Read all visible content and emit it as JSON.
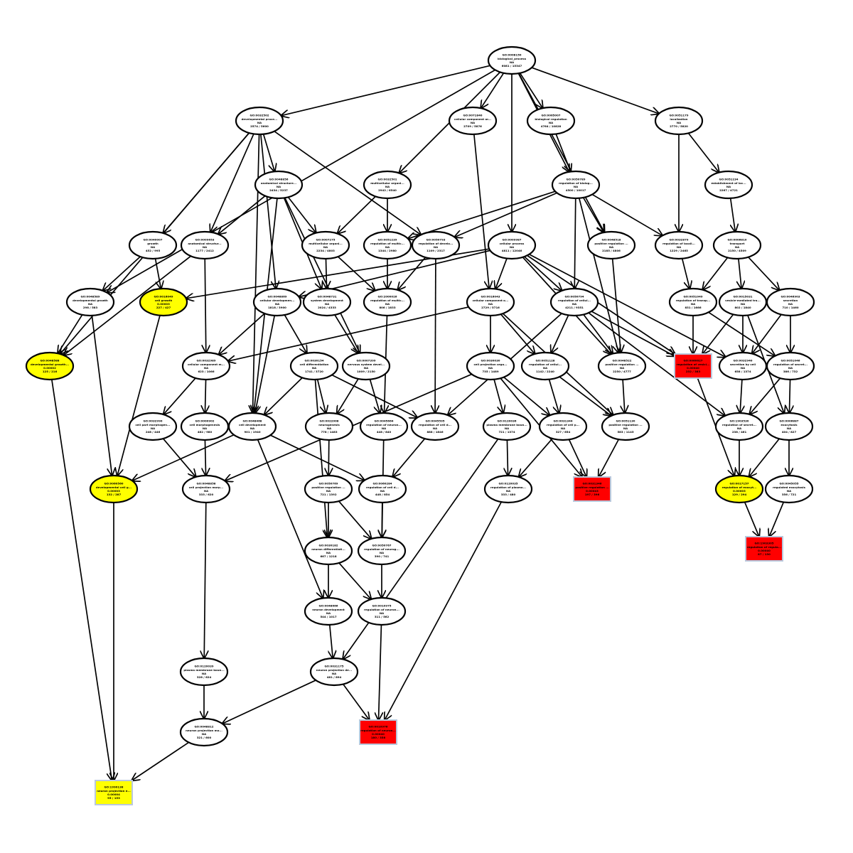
{
  "colors": {
    "significant": "#ff0000",
    "near_significant": "#ffff00",
    "default": "#ffffff",
    "rect_border": "#b9c8dc"
  },
  "nodes": [
    {
      "id": "n0",
      "lines": [
        "GO:0008150",
        "biological_process",
        "NA",
        "6081 / 15347"
      ],
      "fill": "white",
      "shape": "ellipse"
    },
    {
      "id": "n1",
      "lines": [
        "GO:0032502",
        "developmental proce...",
        "NA",
        "2574 / 5600"
      ],
      "fill": "white",
      "shape": "ellipse"
    },
    {
      "id": "n2",
      "lines": [
        "GO:0071840",
        "cellular component or...",
        "NA",
        "2709 / 5876"
      ],
      "fill": "white",
      "shape": "ellipse"
    },
    {
      "id": "n3",
      "lines": [
        "GO:0065007",
        "biological regulation",
        "NA",
        "4764 / 10828"
      ],
      "fill": "white",
      "shape": "ellipse"
    },
    {
      "id": "n4",
      "lines": [
        "GO:0051179",
        "localization",
        "NA",
        "2770 / 5820"
      ],
      "fill": "white",
      "shape": "ellipse"
    },
    {
      "id": "n5",
      "lines": [
        "GO:0048856",
        "anatomical structure...",
        "NA",
        "2434 / 5237"
      ],
      "fill": "white",
      "shape": "ellipse"
    },
    {
      "id": "n6",
      "lines": [
        "GO:0032501",
        "multicellular organi...",
        "NA",
        "2942 / 6540"
      ],
      "fill": "white",
      "shape": "ellipse"
    },
    {
      "id": "n7",
      "lines": [
        "GO:0050789",
        "regulation of biolog...",
        "NA",
        "4500 / 10017"
      ],
      "fill": "white",
      "shape": "ellipse"
    },
    {
      "id": "n8",
      "lines": [
        "GO:0051234",
        "establishment of loc...",
        "NA",
        "2267 / 4721"
      ],
      "fill": "white",
      "shape": "ellipse"
    },
    {
      "id": "n9",
      "lines": [
        "GO:0040007",
        "growth",
        "NA",
        "452 / 995"
      ],
      "fill": "white",
      "shape": "ellipse"
    },
    {
      "id": "n10",
      "lines": [
        "GO:0009653",
        "anatomical structur...",
        "NA",
        "1177 / 2412"
      ],
      "fill": "white",
      "shape": "ellipse"
    },
    {
      "id": "n11",
      "lines": [
        "GO:0007275",
        "multicellular organi...",
        "NA",
        "2234 / 4803"
      ],
      "fill": "white",
      "shape": "ellipse"
    },
    {
      "id": "n12",
      "lines": [
        "GO:0051239",
        "regulation of multic...",
        "NA",
        "1344 / 2980"
      ],
      "fill": "white",
      "shape": "ellipse"
    },
    {
      "id": "n13",
      "lines": [
        "GO:0050793",
        "regulation of develo...",
        "NA",
        "1109 / 2317"
      ],
      "fill": "white",
      "shape": "ellipse"
    },
    {
      "id": "n14",
      "lines": [
        "GO:0009987",
        "cellular process",
        "NA",
        "4811 / 12046"
      ],
      "fill": "white",
      "shape": "ellipse"
    },
    {
      "id": "n15",
      "lines": [
        "GO:0048518",
        "positive regulation ...",
        "NA",
        "2185 / 4806"
      ],
      "fill": "white",
      "shape": "ellipse"
    },
    {
      "id": "n16",
      "lines": [
        "GO:0032879",
        "regulation of locali...",
        "NA",
        "1229 / 2465"
      ],
      "fill": "white",
      "shape": "ellipse"
    },
    {
      "id": "n17",
      "lines": [
        "GO:0006810",
        "transport",
        "NA",
        "2150 / 4509"
      ],
      "fill": "white",
      "shape": "ellipse"
    },
    {
      "id": "n18",
      "lines": [
        "GO:0048589",
        "developmental growth",
        "NA",
        "298 / 583"
      ],
      "fill": "white",
      "shape": "ellipse"
    },
    {
      "id": "n19",
      "lines": [
        "GO:0016049",
        "cell growth",
        "0.00003",
        "227 / 427"
      ],
      "fill": "yellow",
      "shape": "ellipse"
    },
    {
      "id": "n20",
      "lines": [
        "GO:0048869",
        "cellular developmen...",
        "NA",
        "1818 / 3900"
      ],
      "fill": "white",
      "shape": "ellipse"
    },
    {
      "id": "n21",
      "lines": [
        "GO:0048731",
        "system development",
        "NA",
        "2024 / 4333"
      ],
      "fill": "white",
      "shape": "ellipse"
    },
    {
      "id": "n22",
      "lines": [
        "GO:2000026",
        "regulation of multic...",
        "NA",
        "806 / 1833"
      ],
      "fill": "white",
      "shape": "ellipse"
    },
    {
      "id": "n23",
      "lines": [
        "GO:0016043",
        "cellular component o...",
        "NA",
        "2729 / 5716"
      ],
      "fill": "white",
      "shape": "ellipse"
    },
    {
      "id": "n24",
      "lines": [
        "GO:0050794",
        "regulation of cellul...",
        "NA",
        "4211 / 9351"
      ],
      "fill": "white",
      "shape": "ellipse"
    },
    {
      "id": "n25",
      "lines": [
        "GO:0051049",
        "regulation of transp...",
        "NA",
        "831 / 1666"
      ],
      "fill": "white",
      "shape": "ellipse"
    },
    {
      "id": "n26",
      "lines": [
        "GO:0015031",
        "vesicle-mediated tra...",
        "NA",
        "802 / 1840"
      ],
      "fill": "white",
      "shape": "ellipse"
    },
    {
      "id": "n27",
      "lines": [
        "GO:0046903",
        "secretion",
        "NA",
        "710 / 1460"
      ],
      "fill": "white",
      "shape": "ellipse"
    },
    {
      "id": "n28",
      "lines": [
        "GO:0048588",
        "developmental growth...",
        "0.00002",
        "125 / 216"
      ],
      "fill": "yellow",
      "shape": "ellipse"
    },
    {
      "id": "n29",
      "lines": [
        "GO:0032989",
        "cellular component m...",
        "NA",
        "623 / 1066"
      ],
      "fill": "white",
      "shape": "ellipse"
    },
    {
      "id": "n30",
      "lines": [
        "GO:0030154",
        "cell differentiation",
        "NA",
        "1741 / 3720"
      ],
      "fill": "white",
      "shape": "ellipse"
    },
    {
      "id": "n31",
      "lines": [
        "GO:0007399",
        "nervous system devel...",
        "NA",
        "1009 / 2150"
      ],
      "fill": "white",
      "shape": "ellipse"
    },
    {
      "id": "n32",
      "lines": [
        "GO:0030030",
        "cell projection orga...",
        "NA",
        "735 / 1489"
      ],
      "fill": "white",
      "shape": "ellipse"
    },
    {
      "id": "n33",
      "lines": [
        "GO:0051128",
        "regulation of cellul...",
        "NA",
        "1142 / 2240"
      ],
      "fill": "white",
      "shape": "ellipse"
    },
    {
      "id": "n34",
      "lines": [
        "GO:0048522",
        "positive regulation ...",
        "NA",
        "2250 / 4777"
      ],
      "fill": "white",
      "shape": "ellipse"
    },
    {
      "id": "n35",
      "lines": [
        "GO:0060627",
        "regulation of vesicl...",
        "0.00040",
        "232 / 383"
      ],
      "fill": "red",
      "shape": "rect"
    },
    {
      "id": "n36",
      "lines": [
        "GO:0032940",
        "secretion by cell",
        "NA",
        "658 / 1374"
      ],
      "fill": "white",
      "shape": "ellipse"
    },
    {
      "id": "n37",
      "lines": [
        "GO:0051046",
        "regulation of secret...",
        "NA",
        "386 / 732"
      ],
      "fill": "white",
      "shape": "ellipse"
    },
    {
      "id": "n38",
      "lines": [
        "GO:0032990",
        "cell part morphogen...",
        "NA",
        "248 / 446"
      ],
      "fill": "white",
      "shape": "ellipse"
    },
    {
      "id": "n39",
      "lines": [
        "GO:0000902",
        "cell morphogenesis",
        "NA",
        "482 / 980"
      ],
      "fill": "white",
      "shape": "ellipse"
    },
    {
      "id": "n40",
      "lines": [
        "GO:0048468",
        "cell development",
        "NA",
        "901 / 1940"
      ],
      "fill": "white",
      "shape": "ellipse"
    },
    {
      "id": "n41",
      "lines": [
        "GO:0022008",
        "neurogenesis",
        "NA",
        "778 / 1483"
      ],
      "fill": "white",
      "shape": "ellipse"
    },
    {
      "id": "n42",
      "lines": [
        "GO:0045664",
        "regulation of neuron...",
        "NA",
        "448 / 840"
      ],
      "fill": "white",
      "shape": "ellipse"
    },
    {
      "id": "n43",
      "lines": [
        "GO:0045595",
        "regulation of cell d...",
        "NA",
        "888 / 1846"
      ],
      "fill": "white",
      "shape": "ellipse"
    },
    {
      "id": "n44",
      "lines": [
        "GO:0120036",
        "plasma membrane boun...",
        "NA",
        "721 / 1374"
      ],
      "fill": "white",
      "shape": "ellipse"
    },
    {
      "id": "n45",
      "lines": [
        "GO:0031344",
        "regulation of cell p...",
        "NA",
        "327 / 654"
      ],
      "fill": "white",
      "shape": "ellipse"
    },
    {
      "id": "n46",
      "lines": [
        "GO:0051130",
        "positive regulation ...",
        "NA",
        "583 / 1145"
      ],
      "fill": "white",
      "shape": "ellipse"
    },
    {
      "id": "n47",
      "lines": [
        "GO:1903530",
        "regulation of secret...",
        "NA",
        "238 / 461"
      ],
      "fill": "white",
      "shape": "ellipse"
    },
    {
      "id": "n48",
      "lines": [
        "GO:0006887",
        "exocytosis",
        "NA",
        "404 / 827"
      ],
      "fill": "white",
      "shape": "ellipse"
    },
    {
      "id": "n49",
      "lines": [
        "GO:0060560",
        "developmental cell g...",
        "0.00003",
        "132 / 287"
      ],
      "fill": "yellow",
      "shape": "ellipse"
    },
    {
      "id": "n50",
      "lines": [
        "GO:0048858",
        "cell projection morp...",
        "NA",
        "333 / 620"
      ],
      "fill": "white",
      "shape": "ellipse"
    },
    {
      "id": "n51",
      "lines": [
        "GO:0050769",
        "positive regulation ...",
        "NA",
        "721 / 1392"
      ],
      "fill": "white",
      "shape": "ellipse"
    },
    {
      "id": "n52",
      "lines": [
        "GO:0060284",
        "regulation of cell d...",
        "NA",
        "448 / 854"
      ],
      "fill": "white",
      "shape": "ellipse"
    },
    {
      "id": "n53",
      "lines": [
        "GO:0120035",
        "regulation of plasma...",
        "NA",
        "333 / 480"
      ],
      "fill": "white",
      "shape": "ellipse"
    },
    {
      "id": "n54",
      "lines": [
        "GO:0031346",
        "positive regulation ...",
        "0.00043",
        "197 / 396"
      ],
      "fill": "red",
      "shape": "rect"
    },
    {
      "id": "n55",
      "lines": [
        "GO:0017157",
        "regulation of exocyt...",
        "0.00003",
        "129 / 294"
      ],
      "fill": "yellow",
      "shape": "ellipse"
    },
    {
      "id": "n56",
      "lines": [
        "GO:0045055",
        "regulated exocytosis",
        "NA",
        "356 / 721"
      ],
      "fill": "white",
      "shape": "ellipse"
    },
    {
      "id": "n57",
      "lines": [
        "GO:0030182",
        "neuron differentiati...",
        "NA",
        "667 / 1218"
      ],
      "fill": "white",
      "shape": "ellipse"
    },
    {
      "id": "n58",
      "lines": [
        "GO:0050767",
        "regulation of neurog...",
        "NA",
        "390 / 741"
      ],
      "fill": "white",
      "shape": "ellipse"
    },
    {
      "id": "n59",
      "lines": [
        "GO:1903305",
        "regulation of regula...",
        "0.00040",
        "87 / 130"
      ],
      "fill": "red",
      "shape": "rect"
    },
    {
      "id": "n60",
      "lines": [
        "GO:0048666",
        "neuron development",
        "NA",
        "544 / 1017"
      ],
      "fill": "white",
      "shape": "ellipse"
    },
    {
      "id": "n61",
      "lines": [
        "GO:0010975",
        "regulation of neuron...",
        "NA",
        "311 / 562"
      ],
      "fill": "white",
      "shape": "ellipse"
    },
    {
      "id": "n62",
      "lines": [
        "GO:0120039",
        "plasma membrane boun...",
        "NA",
        "328 / 624"
      ],
      "fill": "white",
      "shape": "ellipse"
    },
    {
      "id": "n63",
      "lines": [
        "GO:0031175",
        "neuron projection de...",
        "NA",
        "481 / 894"
      ],
      "fill": "white",
      "shape": "ellipse"
    },
    {
      "id": "n64",
      "lines": [
        "GO:0048812",
        "neuron projection mo...",
        "NA",
        "321 / 600"
      ],
      "fill": "white",
      "shape": "ellipse"
    },
    {
      "id": "n65",
      "lines": [
        "GO:0010976",
        "regulation of neuron...",
        "0.00040",
        "180 / 358"
      ],
      "fill": "red",
      "shape": "rect"
    },
    {
      "id": "n66",
      "lines": [
        "GO:1990138",
        "neuron projection e...",
        "0.00004",
        "95 / 153"
      ],
      "fill": "yellow",
      "shape": "rect"
    }
  ],
  "edges": [
    [
      "n0",
      "n1"
    ],
    [
      "n0",
      "n2"
    ],
    [
      "n0",
      "n3"
    ],
    [
      "n0",
      "n4"
    ],
    [
      "n0",
      "n6"
    ],
    [
      "n0",
      "n7"
    ],
    [
      "n0",
      "n14"
    ],
    [
      "n0",
      "n15"
    ],
    [
      "n0",
      "n18"
    ],
    [
      "n1",
      "n9"
    ],
    [
      "n1",
      "n10"
    ],
    [
      "n1",
      "n5"
    ],
    [
      "n1",
      "n13"
    ],
    [
      "n1",
      "n20"
    ],
    [
      "n1",
      "n28"
    ],
    [
      "n1",
      "n40"
    ],
    [
      "n2",
      "n23"
    ],
    [
      "n3",
      "n7"
    ],
    [
      "n4",
      "n16"
    ],
    [
      "n4",
      "n8"
    ],
    [
      "n5",
      "n10"
    ],
    [
      "n5",
      "n11"
    ],
    [
      "n5",
      "n21"
    ],
    [
      "n5",
      "n40"
    ],
    [
      "n5",
      "n31"
    ],
    [
      "n6",
      "n11"
    ],
    [
      "n6",
      "n12"
    ],
    [
      "n7",
      "n12"
    ],
    [
      "n7",
      "n13"
    ],
    [
      "n7",
      "n15"
    ],
    [
      "n7",
      "n16"
    ],
    [
      "n7",
      "n24"
    ],
    [
      "n7",
      "n34"
    ],
    [
      "n8",
      "n17"
    ],
    [
      "n9",
      "n18"
    ],
    [
      "n9",
      "n19"
    ],
    [
      "n10",
      "n28"
    ],
    [
      "n10",
      "n29"
    ],
    [
      "n11",
      "n21"
    ],
    [
      "n11",
      "n22"
    ],
    [
      "n12",
      "n22"
    ],
    [
      "n13",
      "n22"
    ],
    [
      "n13",
      "n43"
    ],
    [
      "n14",
      "n19"
    ],
    [
      "n14",
      "n20"
    ],
    [
      "n14",
      "n23"
    ],
    [
      "n14",
      "n24"
    ],
    [
      "n14",
      "n34"
    ],
    [
      "n14",
      "n35"
    ],
    [
      "n14",
      "n36"
    ],
    [
      "n15",
      "n34"
    ],
    [
      "n16",
      "n25"
    ],
    [
      "n17",
      "n25"
    ],
    [
      "n17",
      "n26"
    ],
    [
      "n17",
      "n27"
    ],
    [
      "n18",
      "n28"
    ],
    [
      "n18",
      "n49"
    ],
    [
      "n19",
      "n49"
    ],
    [
      "n20",
      "n29"
    ],
    [
      "n20",
      "n30"
    ],
    [
      "n20",
      "n40"
    ],
    [
      "n21",
      "n31"
    ],
    [
      "n22",
      "n42"
    ],
    [
      "n23",
      "n29"
    ],
    [
      "n23",
      "n32"
    ],
    [
      "n23",
      "n33"
    ],
    [
      "n23",
      "n46"
    ],
    [
      "n24",
      "n33"
    ],
    [
      "n24",
      "n34"
    ],
    [
      "n24",
      "n35"
    ],
    [
      "n24",
      "n43"
    ],
    [
      "n24",
      "n47"
    ],
    [
      "n25",
      "n35"
    ],
    [
      "n25",
      "n37"
    ],
    [
      "n26",
      "n35"
    ],
    [
      "n26",
      "n36"
    ],
    [
      "n26",
      "n48"
    ],
    [
      "n27",
      "n36"
    ],
    [
      "n27",
      "n37"
    ],
    [
      "n29",
      "n38"
    ],
    [
      "n29",
      "n39"
    ],
    [
      "n30",
      "n40"
    ],
    [
      "n30",
      "n41"
    ],
    [
      "n30",
      "n43"
    ],
    [
      "n30",
      "n57"
    ],
    [
      "n31",
      "n41"
    ],
    [
      "n31",
      "n42"
    ],
    [
      "n32",
      "n44"
    ],
    [
      "n32",
      "n45"
    ],
    [
      "n32",
      "n50"
    ],
    [
      "n32",
      "n54"
    ],
    [
      "n33",
      "n45"
    ],
    [
      "n33",
      "n46"
    ],
    [
      "n34",
      "n46"
    ],
    [
      "n35",
      "n55"
    ],
    [
      "n36",
      "n47"
    ],
    [
      "n37",
      "n47"
    ],
    [
      "n37",
      "n48"
    ],
    [
      "n38",
      "n50"
    ],
    [
      "n39",
      "n50"
    ],
    [
      "n40",
      "n49"
    ],
    [
      "n40",
      "n52"
    ],
    [
      "n40",
      "n60"
    ],
    [
      "n41",
      "n51"
    ],
    [
      "n42",
      "n58"
    ],
    [
      "n43",
      "n52"
    ],
    [
      "n44",
      "n53"
    ],
    [
      "n44",
      "n63"
    ],
    [
      "n45",
      "n53"
    ],
    [
      "n45",
      "n54"
    ],
    [
      "n46",
      "n54"
    ],
    [
      "n47",
      "n55"
    ],
    [
      "n48",
      "n55"
    ],
    [
      "n48",
      "n56"
    ],
    [
      "n49",
      "n66"
    ],
    [
      "n50",
      "n62"
    ],
    [
      "n51",
      "n57"
    ],
    [
      "n51",
      "n58"
    ],
    [
      "n52",
      "n58"
    ],
    [
      "n53",
      "n65"
    ],
    [
      "n55",
      "n59"
    ],
    [
      "n56",
      "n59"
    ],
    [
      "n57",
      "n60"
    ],
    [
      "n57",
      "n61"
    ],
    [
      "n58",
      "n61"
    ],
    [
      "n60",
      "n63"
    ],
    [
      "n61",
      "n65"
    ],
    [
      "n62",
      "n64"
    ],
    [
      "n63",
      "n64"
    ],
    [
      "n63",
      "n65"
    ],
    [
      "n64",
      "n66"
    ],
    [
      "n28",
      "n66"
    ]
  ]
}
